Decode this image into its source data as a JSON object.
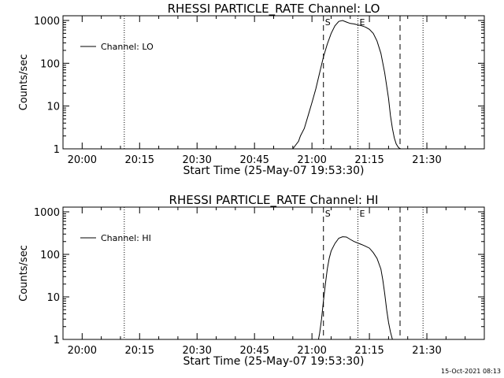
{
  "footer": {
    "timestamp": "15-Oct-2021 08:13"
  },
  "chart_data": [
    {
      "type": "line",
      "title": "RHESSI PARTICLE_RATE Channel: LO",
      "xlabel": "Start Time (25-May-07 19:53:30)",
      "ylabel": "Counts/sec",
      "yscale": "log",
      "ylim": [
        1,
        1000
      ],
      "yticks": [
        1,
        10,
        100,
        1000
      ],
      "ytick_labels": [
        "1",
        "10",
        "100",
        "1000"
      ],
      "xlim_min": [
        -5,
        105
      ],
      "xticks_min": [
        0,
        15,
        30,
        45,
        60,
        75,
        90
      ],
      "xtick_labels": [
        "20:00",
        "20:15",
        "20:30",
        "20:45",
        "21:00",
        "21:15",
        "21:30"
      ],
      "legend": "Channel: LO",
      "legend_position": "top-left",
      "markers": [
        {
          "label": "",
          "min": 11,
          "style": "dotted"
        },
        {
          "label": "S",
          "min": 63,
          "style": "dashed"
        },
        {
          "label": "E",
          "min": 72,
          "style": "dotted"
        },
        {
          "label": "",
          "min": 83,
          "style": "dashed"
        },
        {
          "label": "",
          "min": 89,
          "style": "dotted"
        }
      ],
      "series": [
        {
          "name": "Channel: LO",
          "x": [
            55.0,
            56.5,
            57.0,
            58.0,
            59.0,
            60.0,
            61.0,
            62.0,
            63.0,
            64.0,
            65.0,
            66.0,
            67.0,
            68.0,
            69.0,
            70.0,
            71.0,
            72.0,
            73.0,
            74.0,
            75.0,
            76.0,
            77.0,
            78.0,
            79.0,
            80.0,
            80.5,
            81.0,
            81.5,
            82.0,
            82.5,
            83.0
          ],
          "y": [
            1,
            1.5,
            2,
            3,
            6,
            12,
            25,
            60,
            140,
            280,
            500,
            750,
            950,
            1000,
            920,
            850,
            830,
            790,
            750,
            700,
            620,
            500,
            330,
            170,
            60,
            15,
            6,
            3,
            1.8,
            1.3,
            1.1,
            1
          ]
        }
      ]
    },
    {
      "type": "line",
      "title": "RHESSI PARTICLE_RATE Channel: HI",
      "xlabel": "Start Time (25-May-07 19:53:30)",
      "ylabel": "Counts/sec",
      "yscale": "log",
      "ylim": [
        1,
        1000
      ],
      "yticks": [
        1,
        10,
        100,
        1000
      ],
      "ytick_labels": [
        "1",
        "10",
        "100",
        "1000"
      ],
      "xlim_min": [
        -5,
        105
      ],
      "xticks_min": [
        0,
        15,
        30,
        45,
        60,
        75,
        90
      ],
      "xtick_labels": [
        "20:00",
        "20:15",
        "20:30",
        "20:45",
        "21:00",
        "21:15",
        "21:30"
      ],
      "legend": "Channel: HI",
      "legend_position": "top-left",
      "markers": [
        {
          "label": "",
          "min": 11,
          "style": "dotted"
        },
        {
          "label": "S",
          "min": 63,
          "style": "dashed"
        },
        {
          "label": "E",
          "min": 72,
          "style": "dotted"
        },
        {
          "label": "",
          "min": 83,
          "style": "dashed"
        },
        {
          "label": "",
          "min": 89,
          "style": "dotted"
        }
      ],
      "series": [
        {
          "name": "Channel: HI",
          "x": [
            61.7,
            62.0,
            62.5,
            63.0,
            63.5,
            64.0,
            64.5,
            65.0,
            66.0,
            67.0,
            68.0,
            69.0,
            70.0,
            71.0,
            72.0,
            73.0,
            74.0,
            75.0,
            76.0,
            77.0,
            78.0,
            78.5,
            79.0,
            79.5,
            80.0,
            80.5,
            81.0
          ],
          "y": [
            1,
            1.4,
            3,
            8,
            20,
            45,
            80,
            120,
            180,
            240,
            260,
            255,
            225,
            200,
            185,
            170,
            155,
            140,
            110,
            80,
            45,
            25,
            12,
            5,
            2.5,
            1.5,
            1
          ]
        }
      ]
    }
  ]
}
